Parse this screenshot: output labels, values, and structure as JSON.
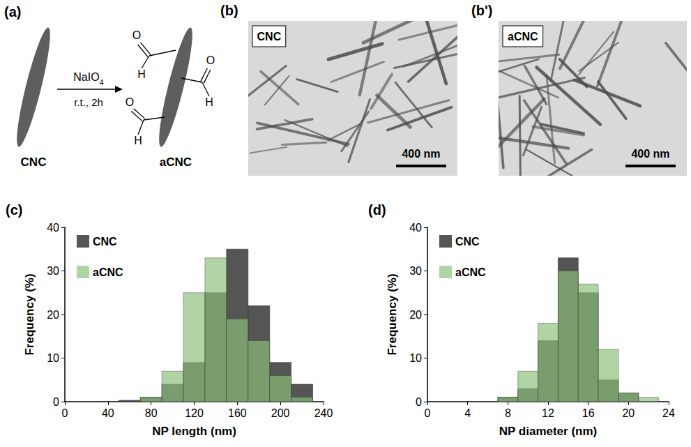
{
  "panels": {
    "a": {
      "letter": "(a)",
      "reagent": "NaIO4",
      "conditions": "r.t., 2h",
      "start_label": "CNC",
      "product_label": "aCNC",
      "aldehyde_groups": [
        [
          "O",
          "H"
        ],
        [
          "O",
          "H"
        ],
        [
          "O",
          "H"
        ]
      ]
    },
    "b": {
      "letter": "(b)",
      "label": "CNC",
      "scale_bar": "400 nm"
    },
    "b_prime": {
      "letter": "(b')",
      "label": "aCNC",
      "scale_bar": "400 nm"
    }
  },
  "chart_data": [
    {
      "type": "histogram",
      "panel": "(c)",
      "xlabel": "NP length (nm)",
      "ylabel": "Frequency (%)",
      "bins": [
        50,
        70,
        90,
        110,
        130,
        150,
        170,
        190,
        210,
        230
      ],
      "series": [
        {
          "name": "CNC",
          "color": "#555555",
          "values": [
            0.3,
            1,
            4,
            9,
            25,
            35,
            22,
            9,
            4
          ]
        },
        {
          "name": "aCNC",
          "color": "#8cbf7a",
          "values": [
            0,
            1,
            7,
            25,
            33,
            19,
            14,
            6,
            1
          ]
        }
      ],
      "xlim": [
        0,
        240
      ],
      "xticks": [
        0,
        40,
        80,
        120,
        160,
        200,
        240
      ],
      "ylim": [
        0,
        40
      ],
      "yticks": [
        0,
        10,
        20,
        30,
        40
      ],
      "legend": "upper left",
      "grid": false
    },
    {
      "type": "histogram",
      "panel": "(d)",
      "xlabel": "NP diameter (nm)",
      "ylabel": "Frequency (%)",
      "bins": [
        7,
        9,
        11,
        13,
        15,
        17,
        19,
        21,
        23
      ],
      "series": [
        {
          "name": "CNC",
          "color": "#555555",
          "values": [
            1,
            3,
            14,
            33,
            25,
            5,
            2,
            0
          ]
        },
        {
          "name": "aCNC",
          "color": "#8cbf7a",
          "values": [
            1,
            7,
            18,
            30,
            27,
            12,
            2,
            1
          ]
        }
      ],
      "xlim": [
        0,
        24
      ],
      "xticks": [
        0,
        4,
        8,
        12,
        16,
        20,
        24
      ],
      "ylim": [
        0,
        40
      ],
      "yticks": [
        0,
        10,
        20,
        30,
        40
      ],
      "legend": "upper left",
      "grid": false
    }
  ]
}
